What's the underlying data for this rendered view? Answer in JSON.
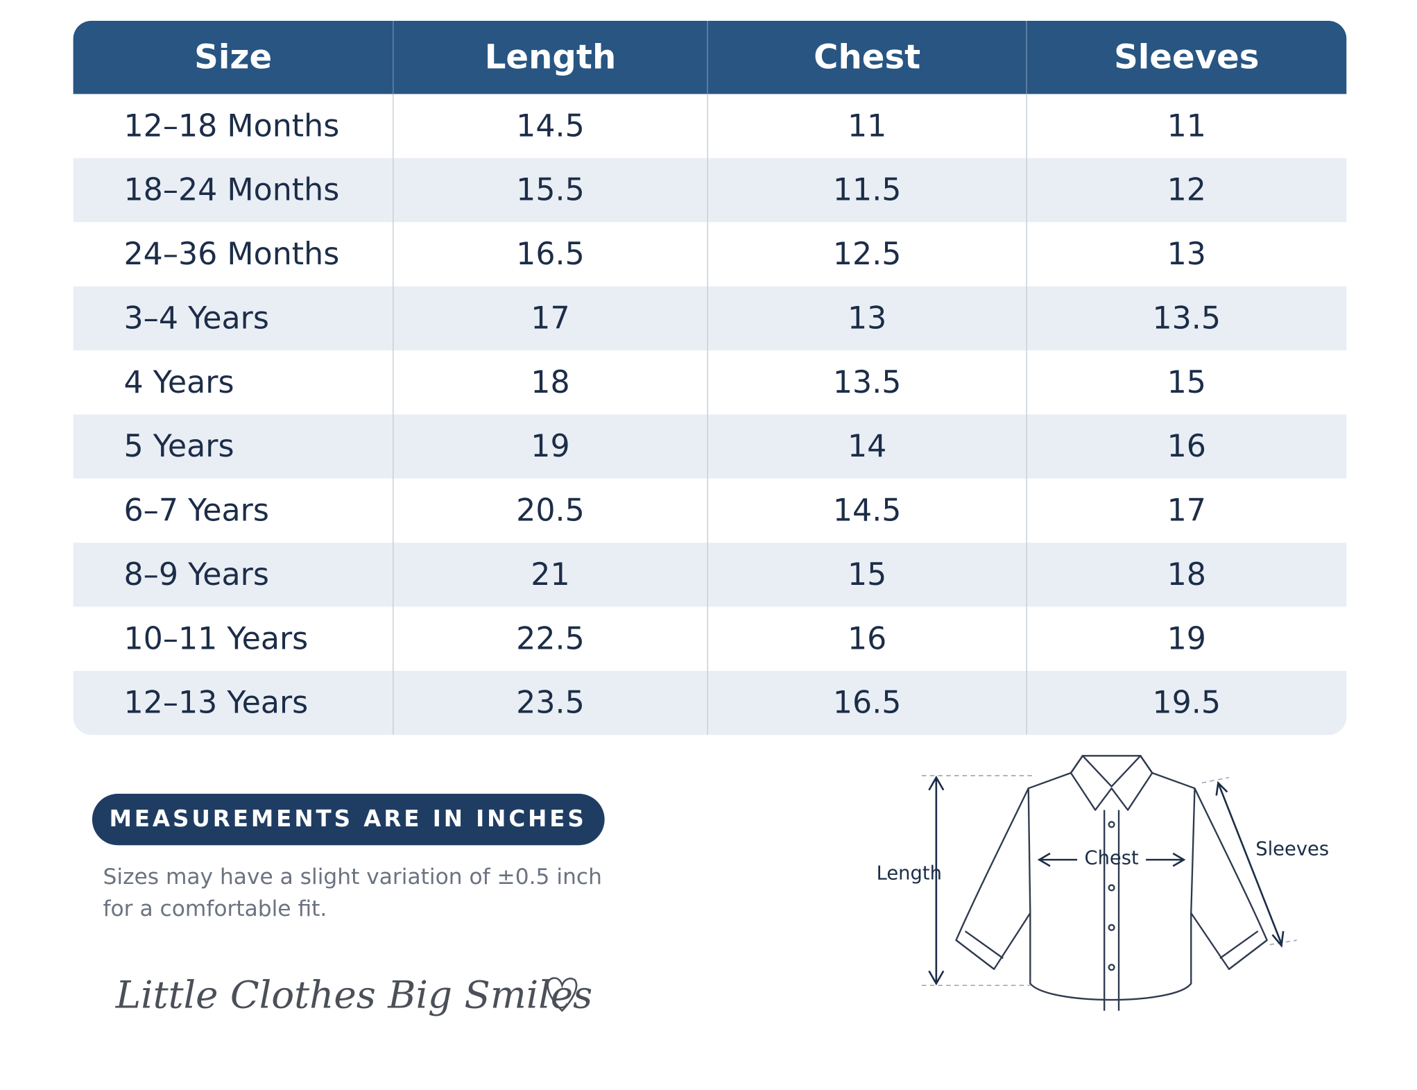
{
  "table": {
    "columns": [
      "Size",
      "Length",
      "Chest",
      "Sleeves"
    ],
    "rows": [
      [
        "12–18 Months",
        14.5,
        11,
        11
      ],
      [
        "18–24 Months",
        15.5,
        11.5,
        12
      ],
      [
        "24–36 Months",
        16.5,
        12.5,
        13
      ],
      [
        "3–4 Years",
        17,
        13,
        13.5
      ],
      [
        "4 Years",
        18,
        13.5,
        15
      ],
      [
        "5 Years",
        19,
        14,
        16
      ],
      [
        "6–7 Years",
        20.5,
        14.5,
        17
      ],
      [
        "8–9 Years",
        21,
        15,
        18
      ],
      [
        "10–11 Years",
        22.5,
        16,
        19
      ],
      [
        "12–13 Years",
        23.5,
        16.5,
        19.5
      ]
    ]
  },
  "note": {
    "badge": "MEASUREMENTS ARE IN INCHES",
    "lines": [
      "Sizes may have a slight variation of ±0.5 inch",
      "for a comfortable fit."
    ]
  },
  "tagline": "Little Clothes Big Smiles",
  "diagram": {
    "length": "Length",
    "chest": "Chest",
    "sleeves": "Sleeves"
  }
}
